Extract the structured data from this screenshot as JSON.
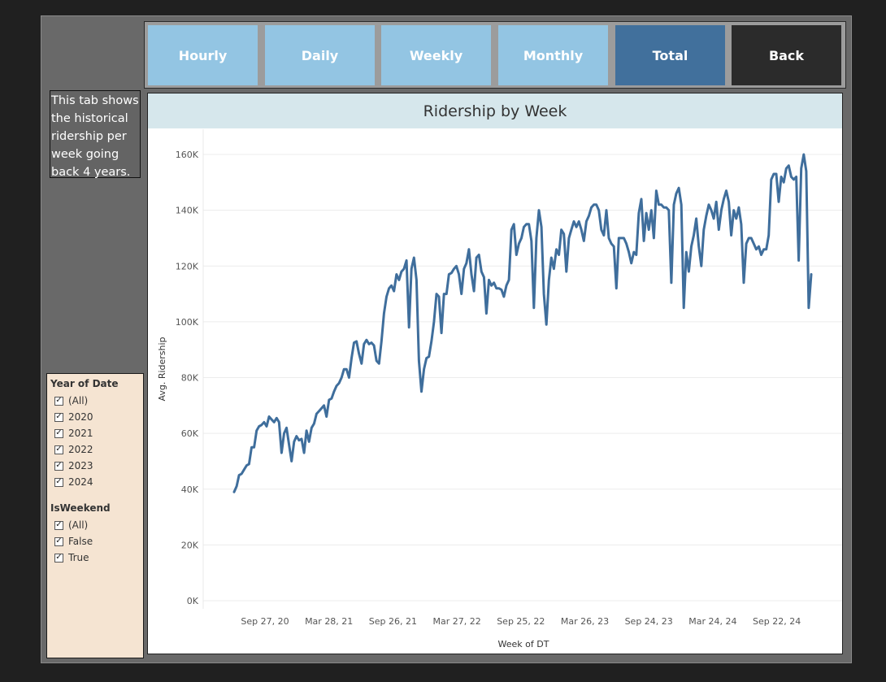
{
  "nav": {
    "buttons": [
      {
        "label": "Hourly",
        "state": "light"
      },
      {
        "label": "Daily",
        "state": "light"
      },
      {
        "label": "Weekly",
        "state": "light"
      },
      {
        "label": "Monthly",
        "state": "light"
      },
      {
        "label": "Total",
        "state": "active"
      },
      {
        "label": "Back",
        "state": "dark"
      }
    ]
  },
  "description": "This tab shows\nthe historical\nridership per\nweek going\nback 4 years.",
  "filters": {
    "year": {
      "title": "Year of Date",
      "options": [
        {
          "label": "(All)",
          "checked": true
        },
        {
          "label": "2020",
          "checked": true
        },
        {
          "label": "2021",
          "checked": true
        },
        {
          "label": "2022",
          "checked": true
        },
        {
          "label": "2023",
          "checked": true
        },
        {
          "label": "2024",
          "checked": true
        }
      ]
    },
    "weekend": {
      "title": "IsWeekend",
      "options": [
        {
          "label": "(All)",
          "checked": true
        },
        {
          "label": "False",
          "checked": true
        },
        {
          "label": "True",
          "checked": true
        }
      ]
    }
  },
  "colors": {
    "line": "#3f6e9c",
    "nav_light": "#93c5e3",
    "nav_active": "#41709c",
    "nav_dark": "#2b2b2b",
    "filter_bg": "#f5e4d2",
    "title_bar": "#d6e7ec"
  },
  "chart_data": {
    "type": "line",
    "title": "Ridership by Week",
    "xlabel": "Week of DT",
    "ylabel": "Avg. Ridership",
    "ylim": [
      0,
      160000
    ],
    "yticks": [
      0,
      20000,
      40000,
      60000,
      80000,
      100000,
      120000,
      140000,
      160000
    ],
    "ytick_labels": [
      "0K",
      "20K",
      "40K",
      "60K",
      "80K",
      "100K",
      "120K",
      "140K",
      "160K"
    ],
    "xtick_labels": [
      "Sep 27, 20",
      "Mar 28, 21",
      "Sep 26, 21",
      "Mar 27, 22",
      "Sep 25, 22",
      "Mar 26, 23",
      "Sep 24, 23",
      "Mar 24, 24",
      "Sep 22, 24"
    ],
    "grid": true,
    "series": [
      {
        "values": [
          39000,
          41000,
          45000,
          45500,
          47000,
          48500,
          49000,
          55000,
          55000,
          61000,
          62500,
          63000,
          64000,
          62500,
          66000,
          65000,
          64000,
          65500,
          64000,
          53000,
          60000,
          62000,
          56000,
          50000,
          57000,
          59000,
          57500,
          58000,
          53000,
          61000,
          57000,
          62000,
          63500,
          67000,
          68000,
          69000,
          70000,
          66000,
          72000,
          72500,
          75000,
          77000,
          78000,
          80000,
          83000,
          83000,
          80000,
          87000,
          92500,
          93000,
          88500,
          85000,
          92000,
          93500,
          92000,
          92500,
          91500,
          86000,
          85000,
          93000,
          103000,
          109000,
          112000,
          113000,
          111000,
          117000,
          115000,
          118000,
          119000,
          122000,
          98000,
          119000,
          123000,
          115000,
          86000,
          75000,
          83000,
          87000,
          87500,
          93000,
          100000,
          110000,
          109000,
          96000,
          110000,
          110000,
          117000,
          117500,
          119000,
          120000,
          117000,
          110000,
          119000,
          121000,
          126000,
          117000,
          111000,
          123000,
          124000,
          118000,
          116000,
          103000,
          115000,
          113000,
          114000,
          112000,
          112000,
          111500,
          109000,
          113000,
          115000,
          133000,
          135000,
          124000,
          128000,
          130000,
          134000,
          135000,
          135000,
          129000,
          105000,
          130000,
          140000,
          134000,
          110000,
          99000,
          115000,
          123000,
          119000,
          126000,
          124000,
          133000,
          131500,
          118000,
          130000,
          133000,
          136000,
          134000,
          136000,
          133000,
          129000,
          136000,
          138000,
          141000,
          142000,
          142000,
          140000,
          133000,
          131000,
          140000,
          130000,
          128000,
          127000,
          112000,
          130000,
          130000,
          130000,
          128000,
          125000,
          121000,
          125000,
          124000,
          139000,
          144000,
          129000,
          139000,
          133000,
          140000,
          130000,
          147000,
          142000,
          142000,
          141000,
          141000,
          140000,
          114000,
          142000,
          146000,
          148000,
          142000,
          105000,
          125000,
          118000,
          127000,
          131000,
          137000,
          127000,
          120000,
          133000,
          138000,
          142000,
          140000,
          137000,
          143000,
          133000,
          140000,
          144000,
          147000,
          143000,
          131000,
          140000,
          137000,
          141000,
          135000,
          114000,
          128000,
          130000,
          130000,
          128000,
          126000,
          127000,
          124000,
          126000,
          126000,
          131000,
          151000,
          153000,
          153000,
          143000,
          152000,
          150000,
          155000,
          156000,
          152000,
          151000,
          152000,
          122000,
          155000,
          160000,
          154000,
          105000,
          117000
        ]
      }
    ]
  }
}
